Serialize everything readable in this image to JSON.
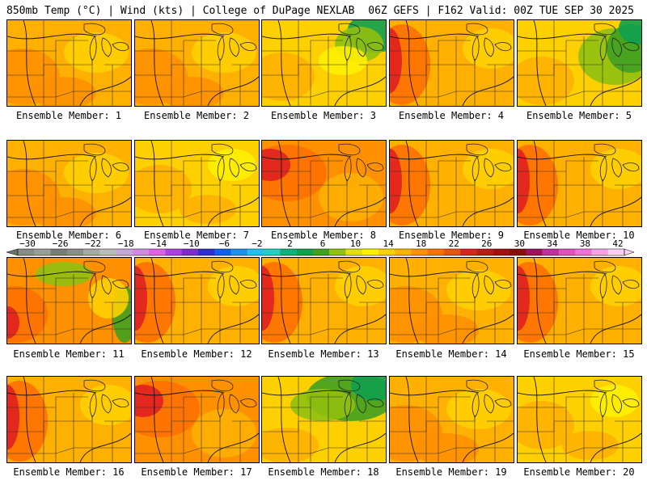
{
  "header": {
    "left": "850mb Temp (°C) | Wind (kts) | College of DuPage NEXLAB",
    "right": "06Z GEFS | F162 Valid: 00Z TUE SEP 30 2025"
  },
  "colorbar": {
    "tick_labels": [
      "−30",
      "−26",
      "−22",
      "−18",
      "−14",
      "−10",
      "−6",
      "−2",
      "2",
      "6",
      "10",
      "14",
      "18",
      "22",
      "26",
      "30",
      "34",
      "38",
      "42"
    ],
    "colors": [
      "#8a8a8a",
      "#9c9c9c",
      "#7a7a7a",
      "#8c8c8c",
      "#a8a8a8",
      "#bcbcbc",
      "#c9a6d9",
      "#d08ae0",
      "#e060e8",
      "#b040e0",
      "#7a2cd0",
      "#3030c8",
      "#1060e8",
      "#2090f0",
      "#20c0f0",
      "#20d0c0",
      "#10b080",
      "#10a050",
      "#40a020",
      "#90c010",
      "#e0e010",
      "#fff000",
      "#ffd000",
      "#ffb000",
      "#ff9000",
      "#ff7000",
      "#f05010",
      "#e02020",
      "#c01818",
      "#a01010",
      "#880c0c",
      "#a01060",
      "#c030a0",
      "#e050c0",
      "#f070d8",
      "#f8a0e8",
      "#fcd0f4"
    ]
  },
  "panels": [
    {
      "label": "Ensemble Member: 1",
      "theme": "warm"
    },
    {
      "label": "Ensemble Member: 2",
      "theme": "warm"
    },
    {
      "label": "Ensemble Member: 3",
      "theme": "cool-ne"
    },
    {
      "label": "Ensemble Member: 4",
      "theme": "hot-w"
    },
    {
      "label": "Ensemble Member: 5",
      "theme": "green-e"
    },
    {
      "label": "Ensemble Member: 6",
      "theme": "warm"
    },
    {
      "label": "Ensemble Member: 7",
      "theme": "mild"
    },
    {
      "label": "Ensemble Member: 8",
      "theme": "hot"
    },
    {
      "label": "Ensemble Member: 9",
      "theme": "hot-w"
    },
    {
      "label": "Ensemble Member: 10",
      "theme": "hot-w"
    },
    {
      "label": "Ensemble Member: 11",
      "theme": "green-mix"
    },
    {
      "label": "Ensemble Member: 12",
      "theme": "hot-w"
    },
    {
      "label": "Ensemble Member: 13",
      "theme": "hot-w"
    },
    {
      "label": "Ensemble Member: 14",
      "theme": "warm"
    },
    {
      "label": "Ensemble Member: 15",
      "theme": "hot-w"
    },
    {
      "label": "Ensemble Member: 16",
      "theme": "hot-w"
    },
    {
      "label": "Ensemble Member: 17",
      "theme": "hot"
    },
    {
      "label": "Ensemble Member: 18",
      "theme": "green-n"
    },
    {
      "label": "Ensemble Member: 19",
      "theme": "warm"
    },
    {
      "label": "Ensemble Member: 20",
      "theme": "mild"
    }
  ]
}
